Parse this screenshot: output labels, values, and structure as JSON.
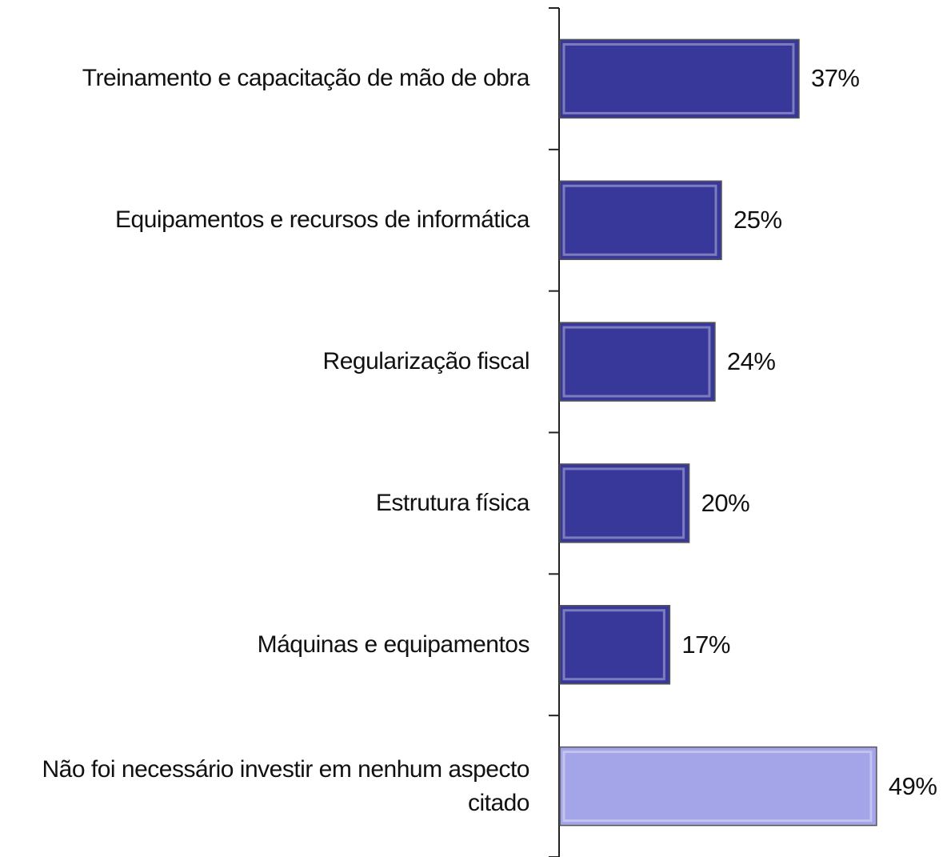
{
  "chart_data": {
    "type": "barh",
    "categories": [
      "Treinamento e capacitação de mão de obra",
      "Equipamentos e recursos de informática",
      "Regularização fiscal",
      "Estrutura física",
      "Máquinas e equipamentos",
      "Não foi necessário investir em nenhum aspecto citado"
    ],
    "values": [
      37,
      25,
      24,
      20,
      17,
      49
    ],
    "value_labels": [
      "37%",
      "25%",
      "24%",
      "20%",
      "17%",
      "49%"
    ],
    "colors": [
      "#38389a",
      "#38389a",
      "#38389a",
      "#38389a",
      "#38389a",
      "#a4a4e8"
    ]
  }
}
